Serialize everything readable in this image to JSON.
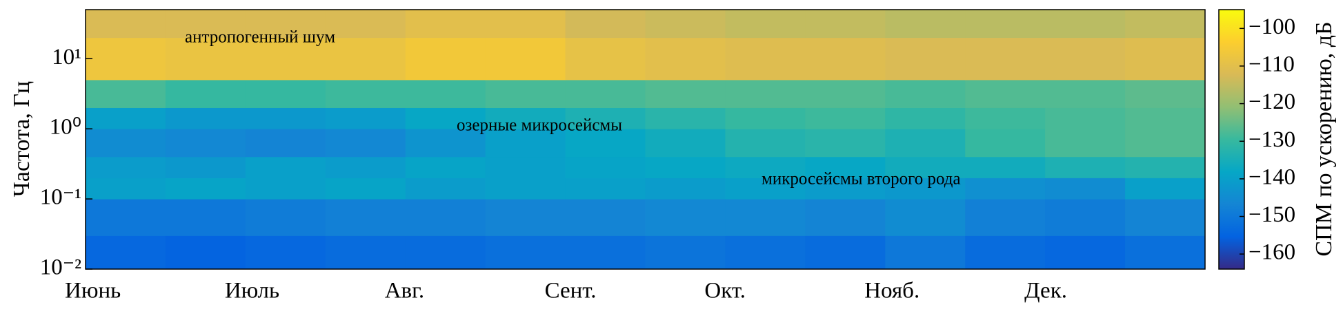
{
  "chart_data": {
    "type": "spectrogram",
    "ylabel": "Частота, Гц",
    "colorbar_label": "СПМ по ускорению, дБ",
    "colormap": "parula",
    "yscale": "log",
    "categories": [
      "Июнь",
      null,
      "Июль",
      null,
      "Авг.",
      null,
      "Сент.",
      null,
      "Окт.",
      null,
      "Нояб.",
      null,
      "Дек.",
      null
    ],
    "ybins": [
      0.01,
      0.03,
      0.1,
      0.2,
      0.4,
      1,
      2,
      5,
      20,
      50
    ],
    "ylim": [
      0.01,
      50
    ],
    "yticks": [
      {
        "value": 0.01,
        "label": "10⁻²"
      },
      {
        "value": 0.1,
        "label": "10⁻¹"
      },
      {
        "value": 1,
        "label": "10⁰"
      },
      {
        "value": 10,
        "label": "10¹"
      }
    ],
    "clim": [
      -164,
      -95
    ],
    "cticks": [
      {
        "value": -160,
        "label": "−160"
      },
      {
        "value": -150,
        "label": "−150"
      },
      {
        "value": -140,
        "label": "−140"
      },
      {
        "value": -130,
        "label": "−130"
      },
      {
        "value": -120,
        "label": "−120"
      },
      {
        "value": -110,
        "label": "−110"
      },
      {
        "value": -100,
        "label": "−100"
      }
    ],
    "z": [
      [
        -154,
        -155,
        -154,
        -153,
        -153,
        -152,
        -152,
        -151,
        -152,
        -153,
        -150,
        -153,
        -154,
        -152
      ],
      [
        -150,
        -150,
        -149,
        -148,
        -148,
        -147,
        -147,
        -146,
        -146,
        -147,
        -145,
        -148,
        -149,
        -147
      ],
      [
        -140,
        -139,
        -140,
        -139,
        -141,
        -140,
        -140,
        -141,
        -140,
        -141,
        -142,
        -144,
        -145,
        -140
      ],
      [
        -141,
        -142,
        -140,
        -141,
        -139,
        -140,
        -139,
        -138,
        -137,
        -138,
        -136,
        -136,
        -134,
        -133
      ],
      [
        -145,
        -146,
        -147,
        -146,
        -143,
        -140,
        -138,
        -136,
        -133,
        -132,
        -134,
        -130,
        -128,
        -127
      ],
      [
        -140,
        -142,
        -142,
        -141,
        -138,
        -136,
        -134,
        -132,
        -130,
        -129,
        -131,
        -129,
        -128,
        -127
      ],
      [
        -128,
        -130,
        -130,
        -129,
        -129,
        -128,
        -128,
        -127,
        -127,
        -127,
        -128,
        -127,
        -127,
        -126
      ],
      [
        -107,
        -108,
        -108,
        -108,
        -106,
        -106,
        -109,
        -110,
        -111,
        -111,
        -112,
        -112,
        -112,
        -111
      ],
      [
        -112,
        -112,
        -112,
        -112,
        -110,
        -110,
        -113,
        -114,
        -115,
        -115,
        -116,
        -116,
        -116,
        -115
      ]
    ],
    "annotations": [
      "антропогенный шум",
      "озерные микросейсмы",
      "микросейсмы второго рода"
    ]
  }
}
